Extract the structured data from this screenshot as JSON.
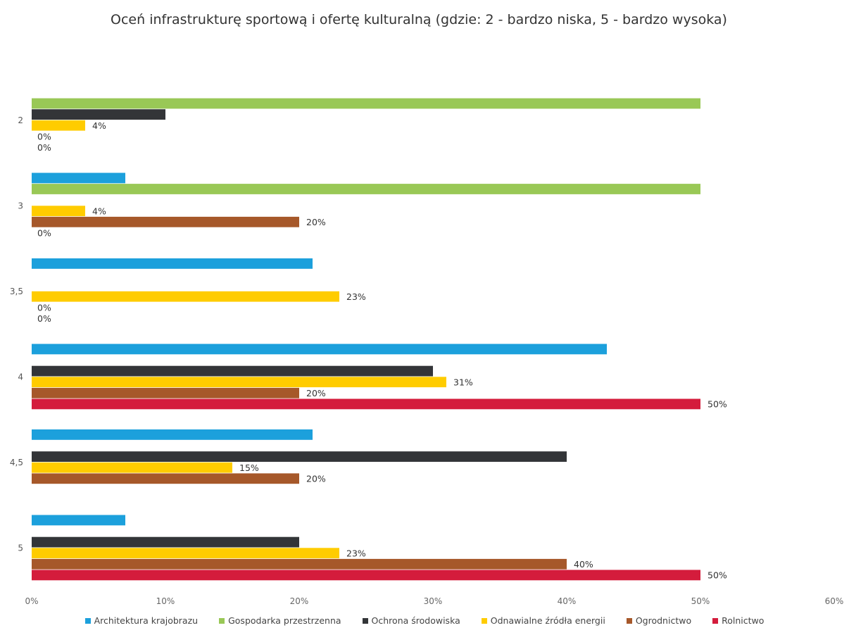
{
  "chart_data": {
    "type": "bar",
    "orientation": "horizontal",
    "title": "Oceń infrastrukturę sportową i ofertę kulturalną (gdzie: 2 - bardzo niska, 5 - bardzo wysoka)",
    "xlabel": "",
    "ylabel": "",
    "categories": [
      "2",
      "3",
      "3,5",
      "4",
      "4,5",
      "5"
    ],
    "xlim": [
      0,
      60
    ],
    "x_ticks": [
      "0%",
      "10%",
      "20%",
      "30%",
      "40%",
      "50%",
      "60%"
    ],
    "grid": false,
    "legend_position": "bottom",
    "series": [
      {
        "name": "Architektura krajobrazu",
        "color": "#1ca0dc",
        "values": [
          null,
          7,
          21,
          43,
          21,
          7
        ],
        "labels": [
          null,
          null,
          null,
          null,
          null,
          null
        ]
      },
      {
        "name": "Gospodarka przestrzenna",
        "color": "#99c856",
        "values": [
          50,
          50,
          null,
          null,
          null,
          null
        ],
        "labels": [
          null,
          null,
          null,
          null,
          null,
          null
        ]
      },
      {
        "name": "Ochrona środowiska",
        "color": "#333538",
        "values": [
          10,
          null,
          null,
          30,
          40,
          20
        ],
        "labels": [
          null,
          null,
          null,
          null,
          null,
          null
        ]
      },
      {
        "name": "Odnawialne źródła energii",
        "color": "#ffcc00",
        "values": [
          4,
          4,
          23,
          31,
          15,
          23
        ],
        "labels": [
          "4%",
          "4%",
          "23%",
          "31%",
          "15%",
          "23%"
        ]
      },
      {
        "name": "Ogrodnictwo",
        "color": "#a6582a",
        "values": [
          0,
          20,
          0,
          20,
          20,
          40
        ],
        "labels": [
          "0%",
          "20%",
          "0%",
          "20%",
          "20%",
          "40%"
        ]
      },
      {
        "name": "Rolnictwo",
        "color": "#d41c3c",
        "values": [
          0,
          0,
          0,
          50,
          0,
          50
        ],
        "labels": [
          "0%",
          "0%",
          "0%",
          "50%",
          null,
          "50%"
        ]
      }
    ]
  }
}
